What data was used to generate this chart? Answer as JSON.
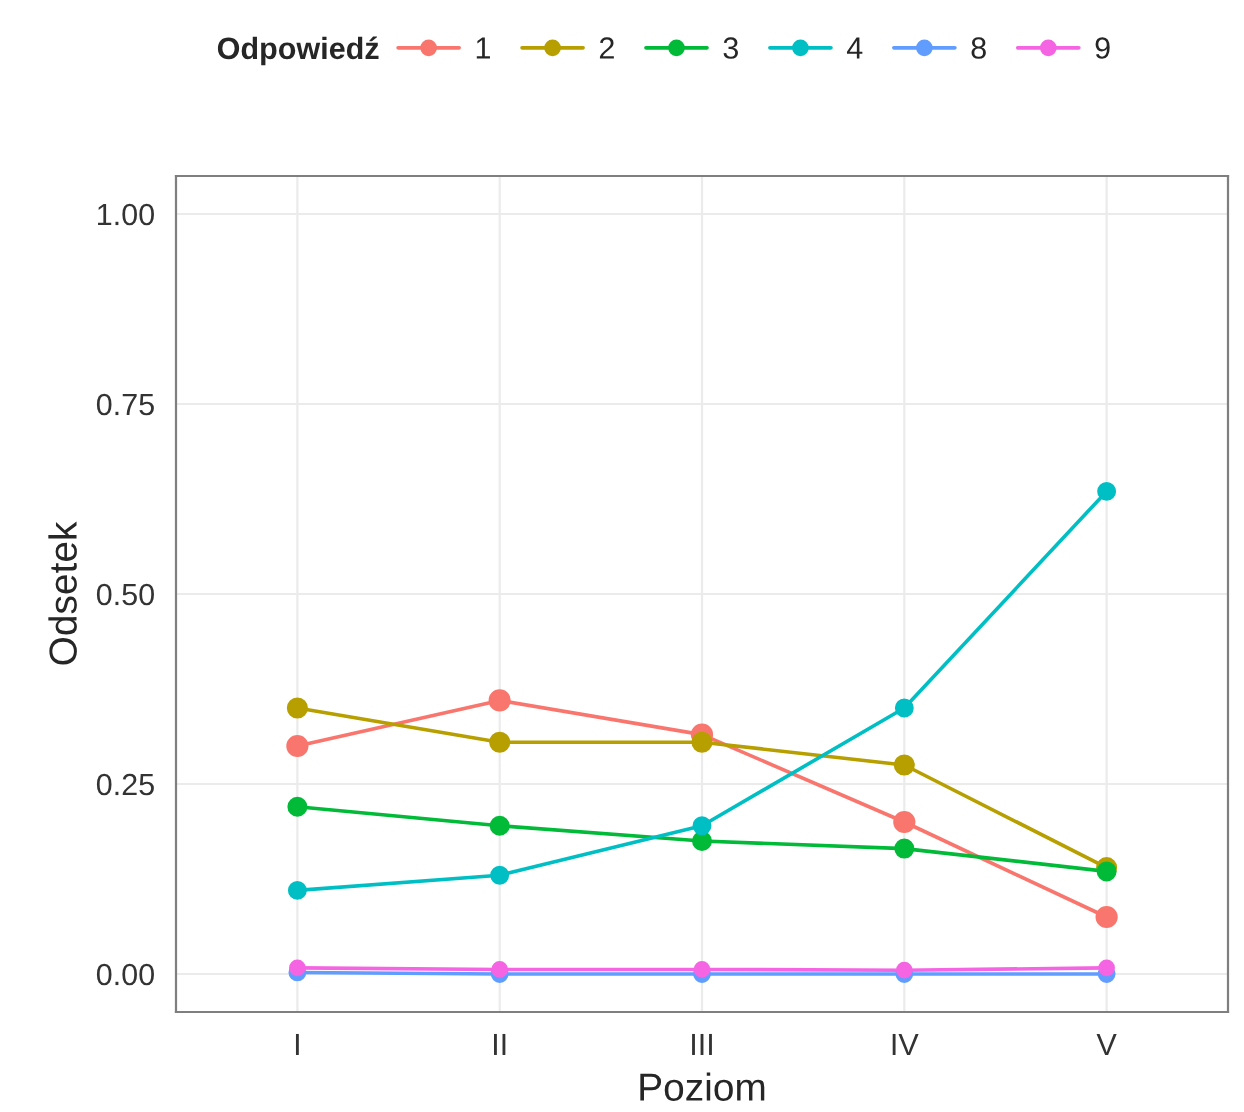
{
  "chart_data": {
    "type": "line",
    "xlabel": "Poziom",
    "ylabel": "Odsetek",
    "legend_title": "Odpowiedź",
    "categories": [
      "I",
      "II",
      "III",
      "IV",
      "V"
    ],
    "series": [
      {
        "name": "1",
        "color": "#f8766d",
        "values": [
          0.3,
          0.36,
          0.315,
          0.2,
          0.075
        ]
      },
      {
        "name": "2",
        "color": "#b79f00",
        "values": [
          0.35,
          0.305,
          0.305,
          0.275,
          0.14
        ]
      },
      {
        "name": "3",
        "color": "#00ba38",
        "values": [
          0.22,
          0.195,
          0.175,
          0.165,
          0.135
        ]
      },
      {
        "name": "4",
        "color": "#00bfc4",
        "values": [
          0.11,
          0.13,
          0.195,
          0.35,
          0.635
        ]
      },
      {
        "name": "8",
        "color": "#619cff",
        "values": [
          0.002,
          0.0,
          0.0,
          0.0,
          0.0
        ]
      },
      {
        "name": "9",
        "color": "#f564e3",
        "values": [
          0.008,
          0.006,
          0.006,
          0.005,
          0.008
        ]
      }
    ],
    "ylim": [
      -0.05,
      1.05
    ],
    "yticks": [
      {
        "value": 0,
        "label": "0.00"
      },
      {
        "value": 0.25,
        "label": "0.25"
      },
      {
        "value": 0.5,
        "label": "0.50"
      },
      {
        "value": 0.75,
        "label": "0.75"
      },
      {
        "value": 1,
        "label": "1.00"
      }
    ],
    "grid": true,
    "legend": "top",
    "marker": "circle",
    "line_style": "solid"
  }
}
